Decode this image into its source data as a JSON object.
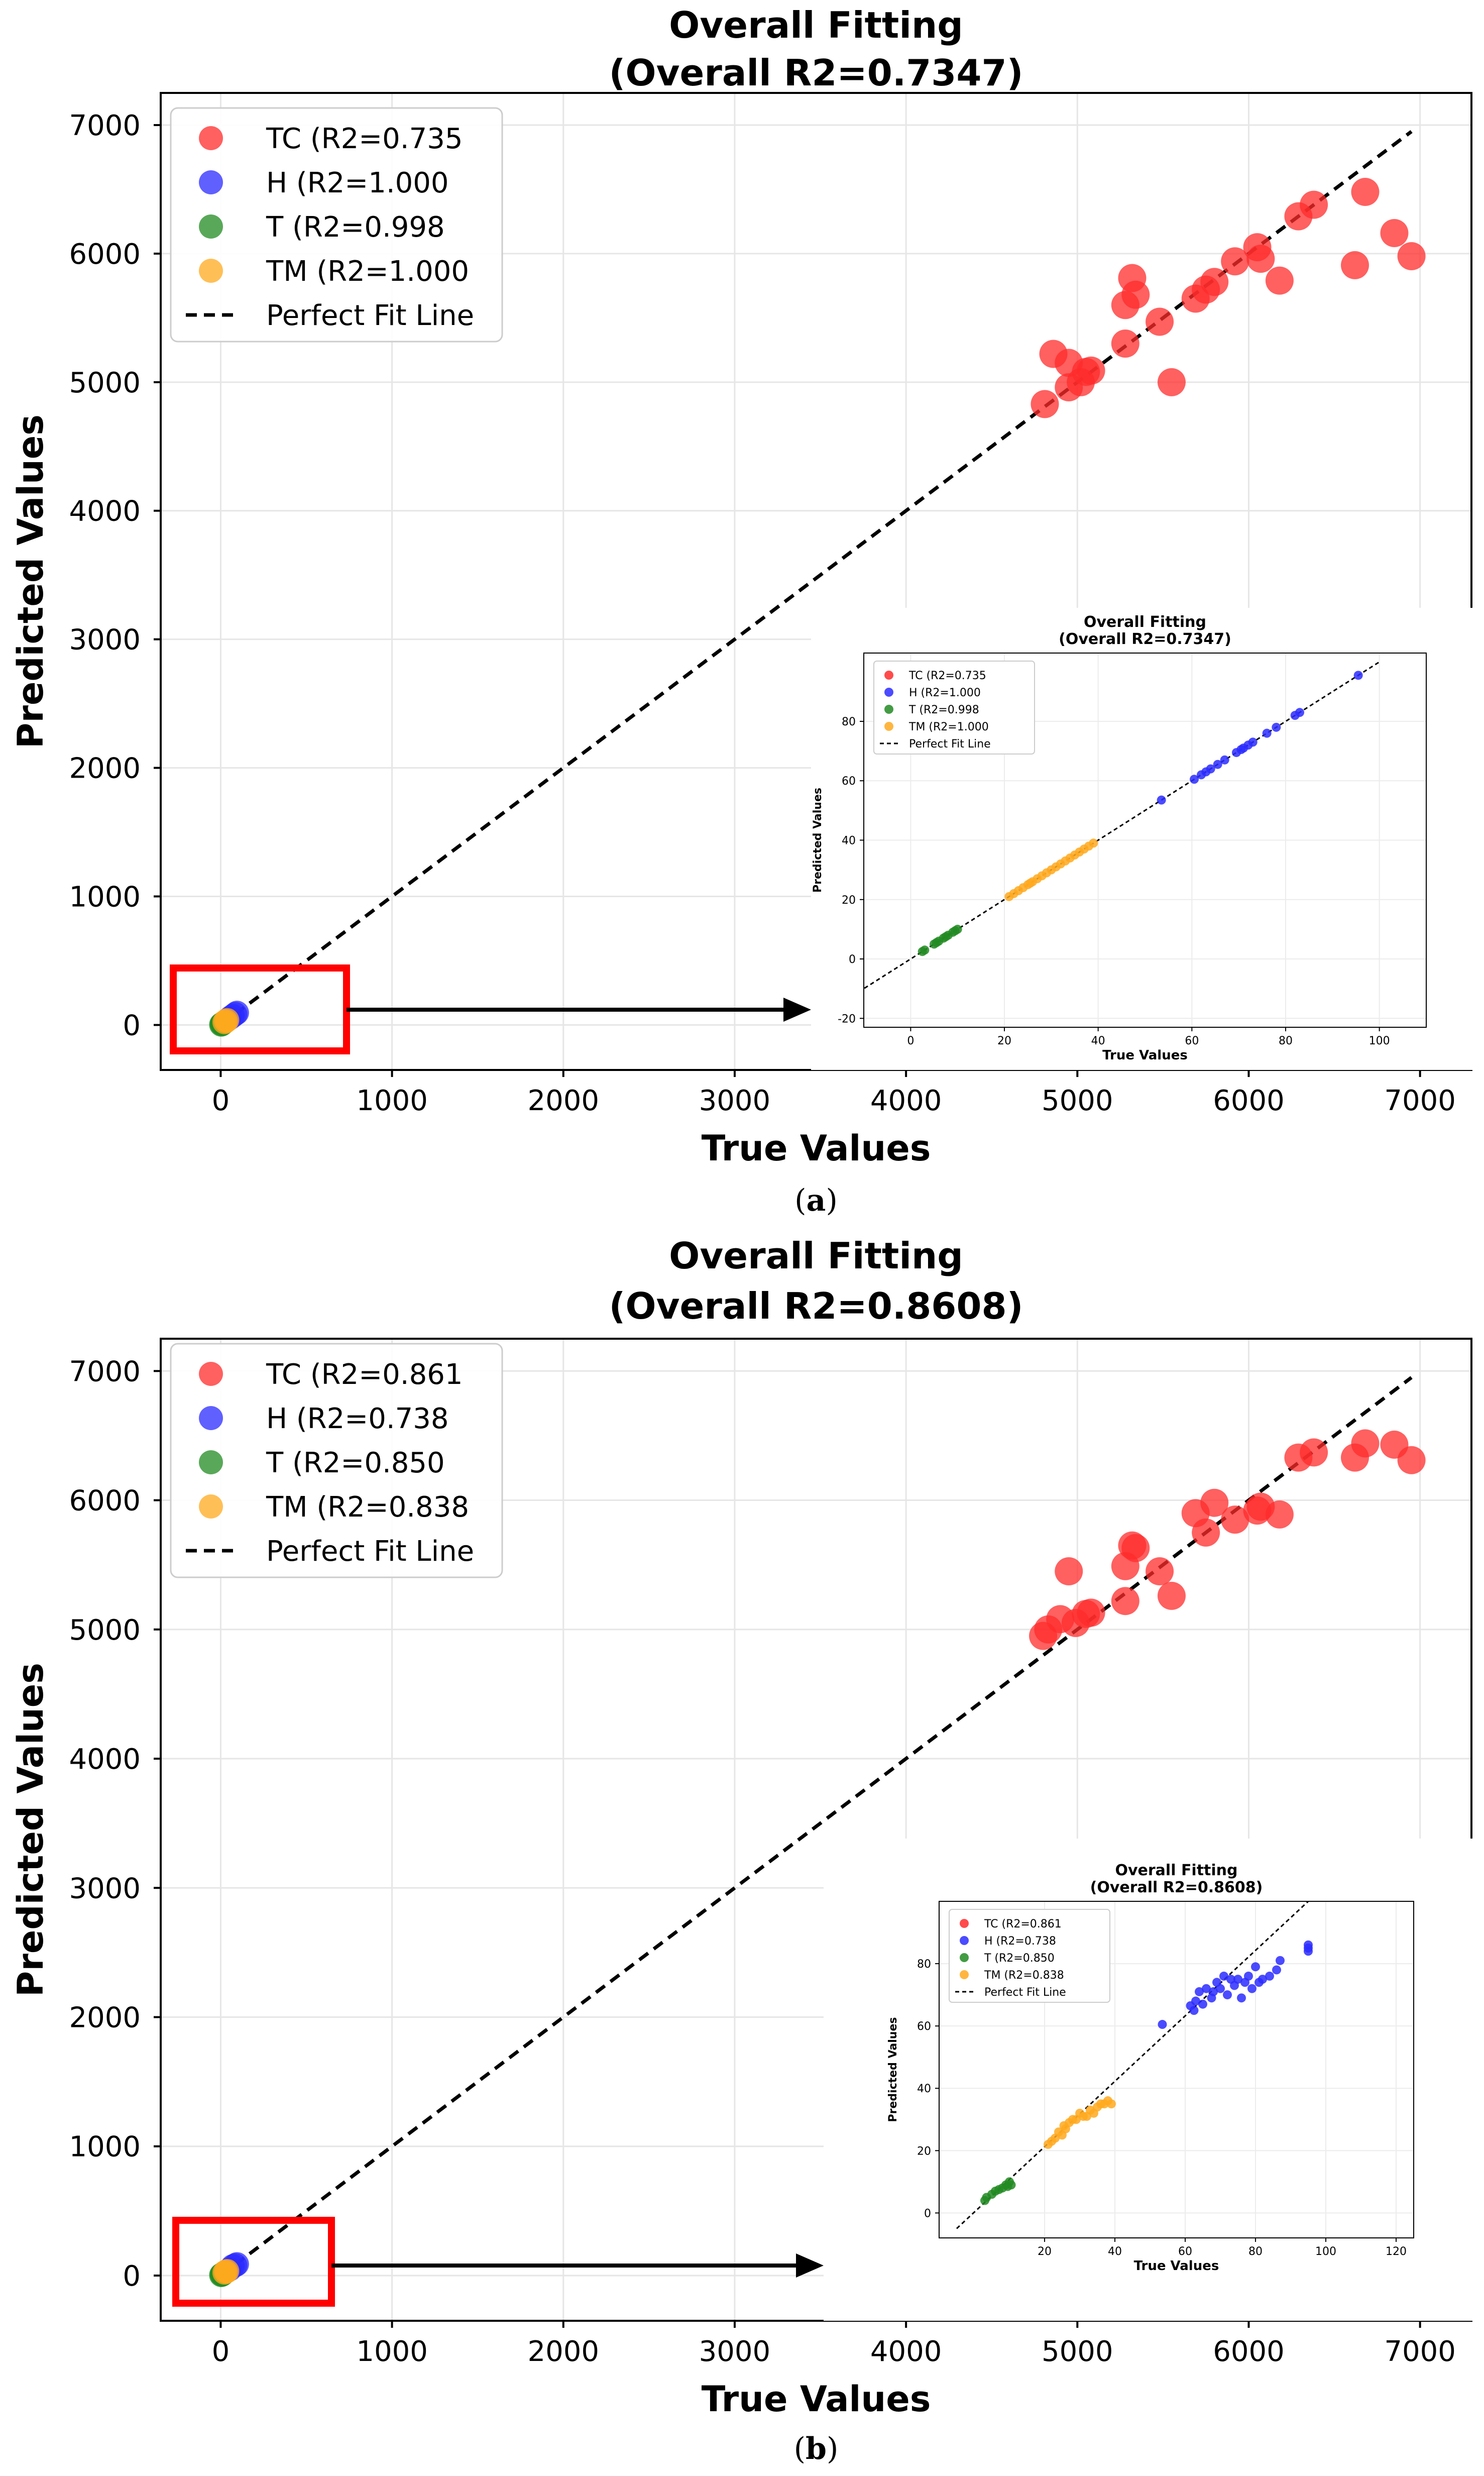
{
  "chart_data": [
    {
      "type": "scatter",
      "panel_label": "a",
      "title": "Overall Fitting",
      "subtitle": "(Overall R2=0.7347)",
      "xlabel": "True Values",
      "ylabel": "Predicted Values",
      "xlim": [
        -350,
        7300
      ],
      "ylim": [
        -350,
        7250
      ],
      "xticks": [
        0,
        1000,
        2000,
        3000,
        4000,
        5000,
        6000,
        7000
      ],
      "yticks": [
        0,
        1000,
        2000,
        3000,
        4000,
        5000,
        6000,
        7000
      ],
      "grid": true,
      "legend_position": "top-left",
      "legend": [
        "TC (R2=0.735",
        "H (R2=1.000",
        "T (R2=0.998",
        "TM (R2=1.000",
        "Perfect Fit Line"
      ],
      "colors": {
        "TC": "#ff2b2b",
        "H": "#2b2bff",
        "T": "#228b22",
        "TM": "#ffa91f",
        "line": "#000000",
        "highlight": "#ff0000"
      },
      "series": [
        {
          "name": "TC (R2=0.735",
          "color": "#ff2b2b",
          "points": [
            [
              4810,
              4830
            ],
            [
              4860,
              5220
            ],
            [
              4950,
              4960
            ],
            [
              4950,
              5150
            ],
            [
              5050,
              5080
            ],
            [
              5080,
              5090
            ],
            [
              5020,
              5000
            ],
            [
              5280,
              5300
            ],
            [
              5280,
              5600
            ],
            [
              5320,
              5810
            ],
            [
              5340,
              5680
            ],
            [
              5480,
              5470
            ],
            [
              5550,
              5000
            ],
            [
              5690,
              5650
            ],
            [
              5750,
              5720
            ],
            [
              5800,
              5780
            ],
            [
              5920,
              5940
            ],
            [
              6050,
              6050
            ],
            [
              6070,
              5960
            ],
            [
              6180,
              5790
            ],
            [
              6290,
              6290
            ],
            [
              6380,
              6380
            ],
            [
              6620,
              5910
            ],
            [
              6680,
              6480
            ],
            [
              6850,
              6160
            ],
            [
              6950,
              5980
            ]
          ]
        },
        {
          "name": "H (R2=1.000",
          "color": "#2b2bff",
          "points": [
            [
              55,
              55
            ],
            [
              70,
              70
            ],
            [
              85,
              85
            ],
            [
              95,
              95
            ]
          ]
        },
        {
          "name": "T (R2=0.998",
          "color": "#228b22",
          "points": [
            [
              3,
              3
            ],
            [
              7,
              7
            ],
            [
              10,
              10
            ]
          ]
        },
        {
          "name": "TM (R2=1.000",
          "color": "#ffa91f",
          "points": [
            [
              22,
              22
            ],
            [
              30,
              30
            ],
            [
              38,
              38
            ]
          ]
        }
      ],
      "perfect_fit_line": [
        [
          0,
          0
        ],
        [
          6950,
          6950
        ]
      ],
      "inset": {
        "title": "Overall Fitting",
        "subtitle": "(Overall R2=0.7347)",
        "xlabel": "True Values",
        "ylabel": "Predicted Values",
        "xlim": [
          -10,
          110
        ],
        "ylim": [
          -23,
          103
        ],
        "xticks": [
          0,
          20,
          40,
          60,
          80,
          100
        ],
        "yticks": [
          -20,
          0,
          20,
          40,
          60,
          80
        ],
        "legend": [
          "TC (R2=0.735",
          "H (R2=1.000",
          "T (R2=0.998",
          "TM (R2=1.000",
          "Perfect Fit Line"
        ],
        "series": [
          {
            "name": "H (R2=1.000",
            "color": "#2b2bff",
            "points": [
              [
                53.5,
                53.5
              ],
              [
                60.5,
                60.5
              ],
              [
                62,
                62
              ],
              [
                63,
                63
              ],
              [
                64,
                64
              ],
              [
                65.5,
                65.5
              ],
              [
                67,
                67
              ],
              [
                69.5,
                69.5
              ],
              [
                70.5,
                70.5
              ],
              [
                71,
                71
              ],
              [
                72,
                72
              ],
              [
                73,
                73
              ],
              [
                76,
                76
              ],
              [
                78,
                78
              ],
              [
                82,
                82
              ],
              [
                83,
                83
              ],
              [
                95.5,
                95.5
              ]
            ]
          },
          {
            "name": "T (R2=0.998",
            "color": "#228b22",
            "points": [
              [
                2.5,
                2.5
              ],
              [
                3,
                3
              ],
              [
                5,
                5
              ],
              [
                5.5,
                5.5
              ],
              [
                6,
                6
              ],
              [
                7,
                7
              ],
              [
                7.5,
                7.5
              ],
              [
                8,
                8
              ],
              [
                9,
                9
              ],
              [
                9.5,
                9.5
              ],
              [
                10,
                10
              ]
            ]
          },
          {
            "name": "TM (R2=1.000",
            "color": "#ffa91f",
            "points": [
              [
                21,
                21
              ],
              [
                22,
                22
              ],
              [
                23,
                23
              ],
              [
                24,
                24
              ],
              [
                25,
                25
              ],
              [
                25.5,
                25.5
              ],
              [
                26,
                26
              ],
              [
                27,
                27
              ],
              [
                28,
                28
              ],
              [
                29,
                29
              ],
              [
                30,
                30
              ],
              [
                31,
                31
              ],
              [
                32,
                32
              ],
              [
                33,
                33
              ],
              [
                34,
                34
              ],
              [
                35,
                35
              ],
              [
                36,
                36
              ],
              [
                37,
                37
              ],
              [
                38,
                38
              ],
              [
                39,
                39
              ]
            ]
          }
        ],
        "perfect_fit_line": [
          [
            -20,
            -20
          ],
          [
            100,
            100
          ]
        ]
      }
    },
    {
      "type": "scatter",
      "panel_label": "b",
      "title": "Overall Fitting",
      "subtitle": "(Overall R2=0.8608)",
      "xlabel": "True Values",
      "ylabel": "Predicted Values",
      "xlim": [
        -350,
        7300
      ],
      "ylim": [
        -350,
        7250
      ],
      "xticks": [
        0,
        1000,
        2000,
        3000,
        4000,
        5000,
        6000,
        7000
      ],
      "yticks": [
        0,
        1000,
        2000,
        3000,
        4000,
        5000,
        6000,
        7000
      ],
      "grid": true,
      "legend_position": "top-left",
      "legend": [
        "TC (R2=0.861",
        "H (R2=0.738",
        "T (R2=0.850",
        "TM (R2=0.838",
        "Perfect Fit Line"
      ],
      "colors": {
        "TC": "#ff2b2b",
        "H": "#2b2bff",
        "T": "#228b22",
        "TM": "#ffa91f",
        "line": "#000000",
        "highlight": "#ff0000"
      },
      "series": [
        {
          "name": "TC (R2=0.861",
          "color": "#ff2b2b",
          "points": [
            [
              4800,
              4950
            ],
            [
              4830,
              5000
            ],
            [
              4900,
              5080
            ],
            [
              4950,
              5450
            ],
            [
              4990,
              5050
            ],
            [
              5050,
              5120
            ],
            [
              5080,
              5130
            ],
            [
              5280,
              5220
            ],
            [
              5280,
              5490
            ],
            [
              5320,
              5650
            ],
            [
              5340,
              5630
            ],
            [
              5480,
              5450
            ],
            [
              5550,
              5260
            ],
            [
              5690,
              5900
            ],
            [
              5750,
              5750
            ],
            [
              5800,
              5980
            ],
            [
              5920,
              5850
            ],
            [
              6050,
              5920
            ],
            [
              6070,
              5950
            ],
            [
              6180,
              5890
            ],
            [
              6290,
              6330
            ],
            [
              6380,
              6370
            ],
            [
              6620,
              6330
            ],
            [
              6680,
              6440
            ],
            [
              6850,
              6430
            ],
            [
              6950,
              6310
            ]
          ]
        },
        {
          "name": "H (R2=0.738",
          "color": "#2b2bff",
          "points": [
            [
              55,
              50
            ],
            [
              70,
              72
            ],
            [
              85,
              80
            ],
            [
              95,
              88
            ]
          ]
        },
        {
          "name": "T (R2=0.850",
          "color": "#228b22",
          "points": [
            [
              3,
              4
            ],
            [
              7,
              8
            ],
            [
              10,
              9
            ]
          ]
        },
        {
          "name": "TM (R2=0.838",
          "color": "#ffa91f",
          "points": [
            [
              22,
              23
            ],
            [
              30,
              30
            ],
            [
              38,
              35
            ]
          ]
        }
      ],
      "perfect_fit_line": [
        [
          0,
          0
        ],
        [
          6950,
          6950
        ]
      ],
      "inset": {
        "title": "Overall Fitting",
        "subtitle": "(Overall R2=0.8608)",
        "xlabel": "True Values",
        "ylabel": "Predicted Values",
        "xlim": [
          -10,
          125
        ],
        "ylim": [
          -8,
          100
        ],
        "xticks": [
          20,
          40,
          60,
          80,
          100,
          120
        ],
        "yticks": [
          0,
          20,
          40,
          60,
          80
        ],
        "legend": [
          "TC (R2=0.861",
          "H (R2=0.738",
          "T (R2=0.850",
          "TM (R2=0.838",
          "Perfect Fit Line"
        ],
        "series": [
          {
            "name": "H (R2=0.738",
            "color": "#2b2bff",
            "points": [
              [
                53.5,
                60.5
              ],
              [
                61.5,
                66.5
              ],
              [
                62.5,
                65
              ],
              [
                63,
                68
              ],
              [
                64,
                71
              ],
              [
                65,
                67
              ],
              [
                66,
                72
              ],
              [
                67.5,
                69
              ],
              [
                68,
                71
              ],
              [
                69,
                74
              ],
              [
                70,
                72
              ],
              [
                71,
                76
              ],
              [
                72,
                70
              ],
              [
                73,
                75
              ],
              [
                74,
                73
              ],
              [
                75,
                75
              ],
              [
                76,
                69
              ],
              [
                77,
                74
              ],
              [
                78,
                76
              ],
              [
                79,
                72
              ],
              [
                80,
                79
              ],
              [
                81,
                74
              ],
              [
                82,
                75
              ],
              [
                84,
                76
              ],
              [
                86,
                78
              ],
              [
                87,
                81
              ],
              [
                95,
                84
              ],
              [
                95,
                85
              ],
              [
                95,
                86
              ]
            ]
          },
          {
            "name": "T (R2=0.850",
            "color": "#228b22",
            "points": [
              [
                3,
                4
              ],
              [
                3.5,
                5
              ],
              [
                5,
                6
              ],
              [
                6,
                7
              ],
              [
                7,
                7.5
              ],
              [
                8,
                8
              ],
              [
                9,
                9
              ],
              [
                9.5,
                8.5
              ],
              [
                10,
                10
              ],
              [
                10.5,
                9
              ]
            ]
          },
          {
            "name": "TM (R2=0.838",
            "color": "#ffa91f",
            "points": [
              [
                21,
                22
              ],
              [
                22,
                23
              ],
              [
                23,
                24
              ],
              [
                24,
                26
              ],
              [
                25,
                25
              ],
              [
                25.5,
                28
              ],
              [
                26,
                27
              ],
              [
                27,
                29
              ],
              [
                28,
                30
              ],
              [
                29,
                30
              ],
              [
                30,
                32
              ],
              [
                31,
                31
              ],
              [
                32,
                31
              ],
              [
                33,
                33
              ],
              [
                34,
                32
              ],
              [
                35,
                34
              ],
              [
                36,
                35
              ],
              [
                37,
                35
              ],
              [
                38,
                36
              ],
              [
                39,
                35
              ]
            ]
          }
        ],
        "perfect_fit_line": [
          [
            -5,
            -5
          ],
          [
            95,
            100
          ]
        ]
      }
    }
  ]
}
